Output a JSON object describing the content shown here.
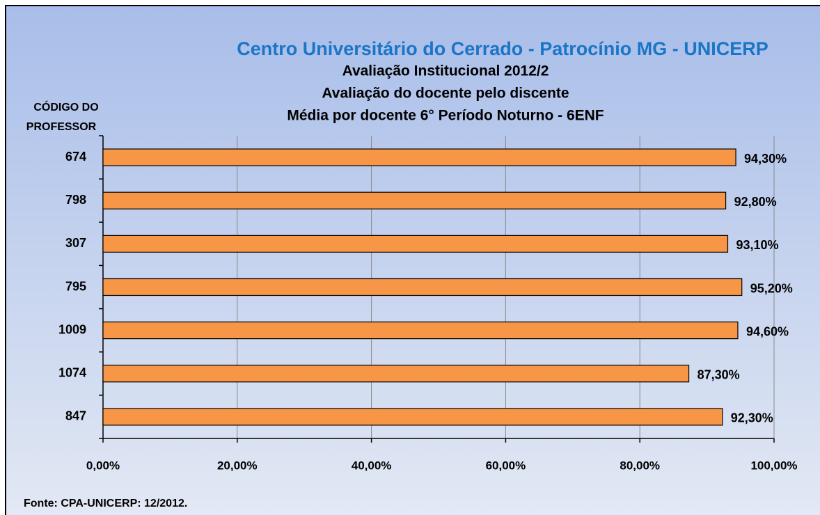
{
  "chart_data": {
    "type": "hbar",
    "title": "Centro Universitário do Cerrado - Patrocínio MG - UNICERP",
    "subtitle": [
      "Avaliação Institucional 2012/2",
      "Avaliação do docente pelo discente",
      "Média por docente 6° Período Noturno - 6ENF"
    ],
    "y_label": [
      "CÓDIGO DO",
      "PROFESSOR"
    ],
    "source": "Fonte: CPA-UNICERP: 12/2012.",
    "categories": [
      "674",
      "798",
      "307",
      "795",
      "1009",
      "1074",
      "847"
    ],
    "values": [
      94.3,
      92.8,
      93.1,
      95.2,
      94.6,
      87.3,
      92.3
    ],
    "value_labels": [
      "94,30%",
      "92,80%",
      "93,10%",
      "95,20%",
      "94,60%",
      "87,30%",
      "92,30%"
    ],
    "color": "#f79646",
    "xlim": [
      0,
      100
    ],
    "xticks": [
      {
        "value": 0,
        "label": "0,00%"
      },
      {
        "value": 20,
        "label": "20,00%"
      },
      {
        "value": 40,
        "label": "40,00%"
      },
      {
        "value": 60,
        "label": "60,00%"
      },
      {
        "value": 80,
        "label": "80,00%"
      },
      {
        "value": 100,
        "label": "100,00%"
      }
    ],
    "grid": true
  }
}
